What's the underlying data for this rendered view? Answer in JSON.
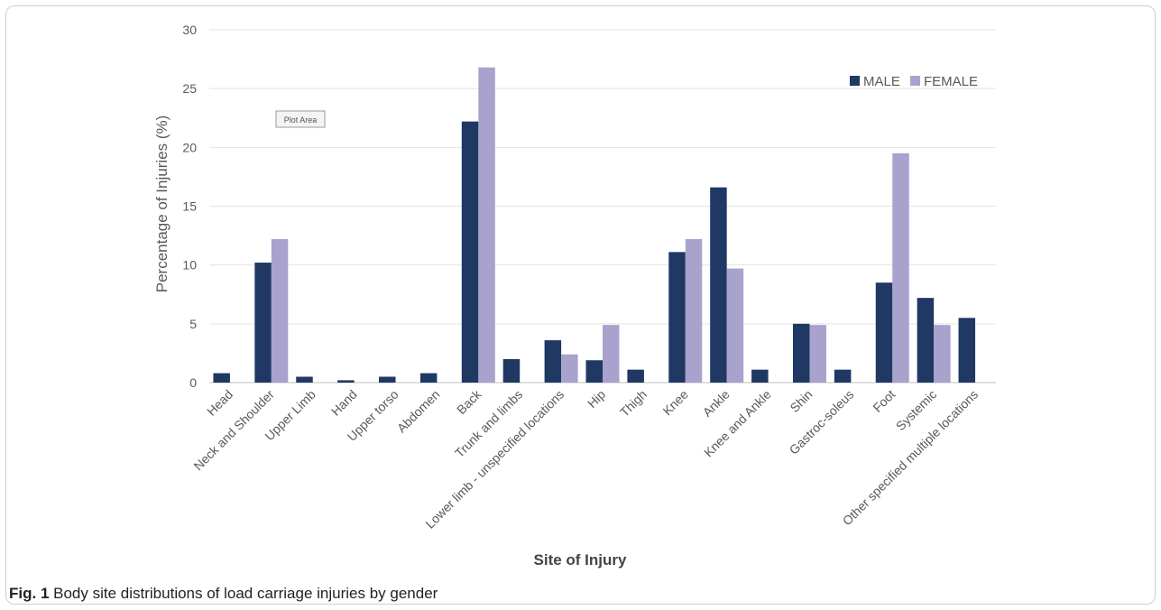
{
  "figure": {
    "caption_label": "Fig. 1",
    "caption_text": "Body site distributions of load carriage injuries by gender",
    "plot_area_tag": "Plot Area"
  },
  "chart_data": {
    "type": "bar",
    "title": "",
    "xlabel": "Site of Injury",
    "ylabel": "Percentage  of Injuries (%)",
    "ylim": [
      0,
      30
    ],
    "yticks": [
      0,
      5,
      10,
      15,
      20,
      25,
      30
    ],
    "grid": true,
    "legend_position": "top-right",
    "categories": [
      "Head",
      "Neck and Shoulder",
      "Upper Limb",
      "Hand",
      "Upper torso",
      "Abdomen",
      "Back",
      "Trunk and limbs",
      "Lower limb - unspecified locations",
      "Hip",
      "Thigh",
      "Knee",
      "Ankle",
      "Knee and Ankle",
      "Shin",
      "Gastroc-soleus",
      "Foot",
      "Systemic",
      "Other specified multiple locations"
    ],
    "series": [
      {
        "name": "MALE",
        "color": "#1f3864",
        "values": [
          0.8,
          10.2,
          0.5,
          0.2,
          0.5,
          0.8,
          22.2,
          2.0,
          3.6,
          1.9,
          1.1,
          11.1,
          16.6,
          1.1,
          5.0,
          1.1,
          8.5,
          7.2,
          5.5
        ]
      },
      {
        "name": "FEMALE",
        "color": "#a9a2cc",
        "values": [
          0,
          12.2,
          0,
          0,
          0,
          0,
          26.8,
          0,
          2.4,
          4.9,
          0,
          12.2,
          9.7,
          0,
          4.9,
          0,
          19.5,
          4.9,
          0
        ]
      }
    ]
  }
}
